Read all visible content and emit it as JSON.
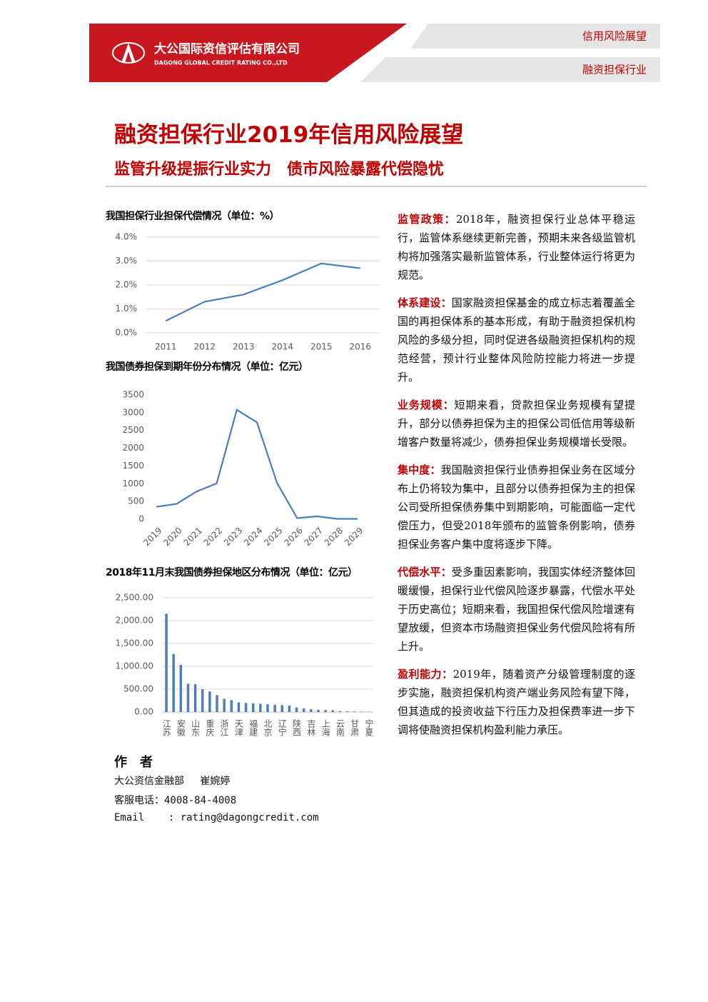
{
  "header": {
    "company_cn": "大公国际资信评估有限公司",
    "company_en": "DAGONG GLOBAL CREDIT RATING CO.,LTD",
    "tag_top": "信用风险展望",
    "tag_bottom": "融资担保行业"
  },
  "title": "融资担保行业2019年信用风险展望",
  "subtitle": "监管升级提振行业实力　债市风险暴露代偿隐忧",
  "chart_data": [
    {
      "type": "line",
      "title": "我国担保行业担保代偿情况（单位：%）",
      "categories": [
        "2011",
        "2012",
        "2013",
        "2014",
        "2015",
        "2016"
      ],
      "values": [
        0.5,
        1.3,
        1.6,
        2.2,
        2.9,
        2.7
      ],
      "color": "#4a7ebb",
      "ylim": [
        0,
        4
      ],
      "yticks": [
        {
          "value": 0,
          "label": "0.0%"
        },
        {
          "value": 1,
          "label": "1.0%"
        },
        {
          "value": 2,
          "label": "2.0%"
        },
        {
          "value": 3,
          "label": "3.0%"
        },
        {
          "value": 4,
          "label": "4.0%"
        }
      ],
      "grid": true
    },
    {
      "type": "line",
      "title": "我国债券担保到期年份分布情况（单位：亿元）",
      "categories": [
        "2019",
        "2020",
        "2021",
        "2022",
        "2023",
        "2024",
        "2025",
        "2026",
        "2027",
        "2028",
        "2029"
      ],
      "values": [
        350,
        430,
        780,
        1010,
        3080,
        2730,
        1020,
        30,
        80,
        10,
        10
      ],
      "color": "#4a7ebb",
      "ylim": [
        0,
        3500
      ],
      "yticks": [
        0,
        500,
        1000,
        1500,
        2000,
        2500,
        3000,
        3500
      ],
      "grid": false
    },
    {
      "type": "bar",
      "title": "2018年11月末我国债券担保地区分布情况（单位：亿元）",
      "categories": [
        "江苏",
        null,
        "安徽",
        null,
        "山东",
        null,
        "重庆",
        null,
        "浙江",
        null,
        "天津",
        null,
        "福建",
        null,
        "北京",
        null,
        "辽宁",
        null,
        "陕西",
        null,
        "吉林",
        null,
        "上海",
        null,
        "云南",
        null,
        "甘肃",
        null,
        "宁夏"
      ],
      "values": [
        2150,
        1270,
        1030,
        620,
        610,
        500,
        450,
        370,
        290,
        260,
        210,
        200,
        190,
        180,
        170,
        160,
        150,
        140,
        100,
        80,
        60,
        50,
        45,
        40,
        20,
        15,
        10,
        8,
        5
      ],
      "color": "#4a7ebb",
      "ylim": [
        0,
        2500
      ],
      "yticks": [
        {
          "value": 0,
          "label": "0.00"
        },
        {
          "value": 500,
          "label": "500.00"
        },
        {
          "value": 1000,
          "label": "1,000.00"
        },
        {
          "value": 1500,
          "label": "1,500.00"
        },
        {
          "value": 2000,
          "label": "2,000.00"
        },
        {
          "value": 2500,
          "label": "2,500.00"
        }
      ],
      "grid": true
    }
  ],
  "sections": [
    {
      "heading": "监管政策：",
      "text": "2018年，融资担保行业总体平稳运行，监管体系继续更新完善，预期未来各级监管机构将加强落实最新监管体系，行业整体运行将更为规范。"
    },
    {
      "heading": "体系建设：",
      "text": "国家融资担保基金的成立标志着覆盖全国的再担保体系的基本形成，有助于融资担保机构风险的多级分担，同时促进各级融资担保机构的规范经营，预计行业整体风险防控能力将进一步提升。"
    },
    {
      "heading": "业务规模：",
      "text": "短期来看，贷款担保业务规模有望提升，部分以债券担保为主的担保公司低信用等级新增客户数量将减少，债券担保业务规模增长受限。"
    },
    {
      "heading": "集中度：",
      "text": "我国融资担保行业债券担保业务在区域分布上仍将较为集中，且部分以债券担保为主的担保公司受所担保债券集中到期影响，可能面临一定代偿压力，但受2018年颁布的监管条例影响，债券担保业务客户集中度将逐步下降。"
    },
    {
      "heading": "代偿水平：",
      "text": "受多重因素影响，我国实体经济整体回暖缓慢，担保行业代偿风险逐步暴露，代偿水平处于历史高位；短期来看，我国担保代偿风险增速有望放缓，但资本市场融资担保业务代偿风险将有所上升。"
    },
    {
      "heading": "盈利能力：",
      "text": "2019年，随着资产分级管理制度的逐步实施，融资担保机构资产端业务风险有望下降，但其造成的投资收益下行压力及担保费率进一步下调将使融资担保机构盈利能力承压。"
    }
  ],
  "author": {
    "heading": "作　者",
    "name": "大公资信金融部　 崔婉婷",
    "phone": "客服电话：4008-84-4008",
    "email": "Email    : rating@dagongcredit.com"
  }
}
